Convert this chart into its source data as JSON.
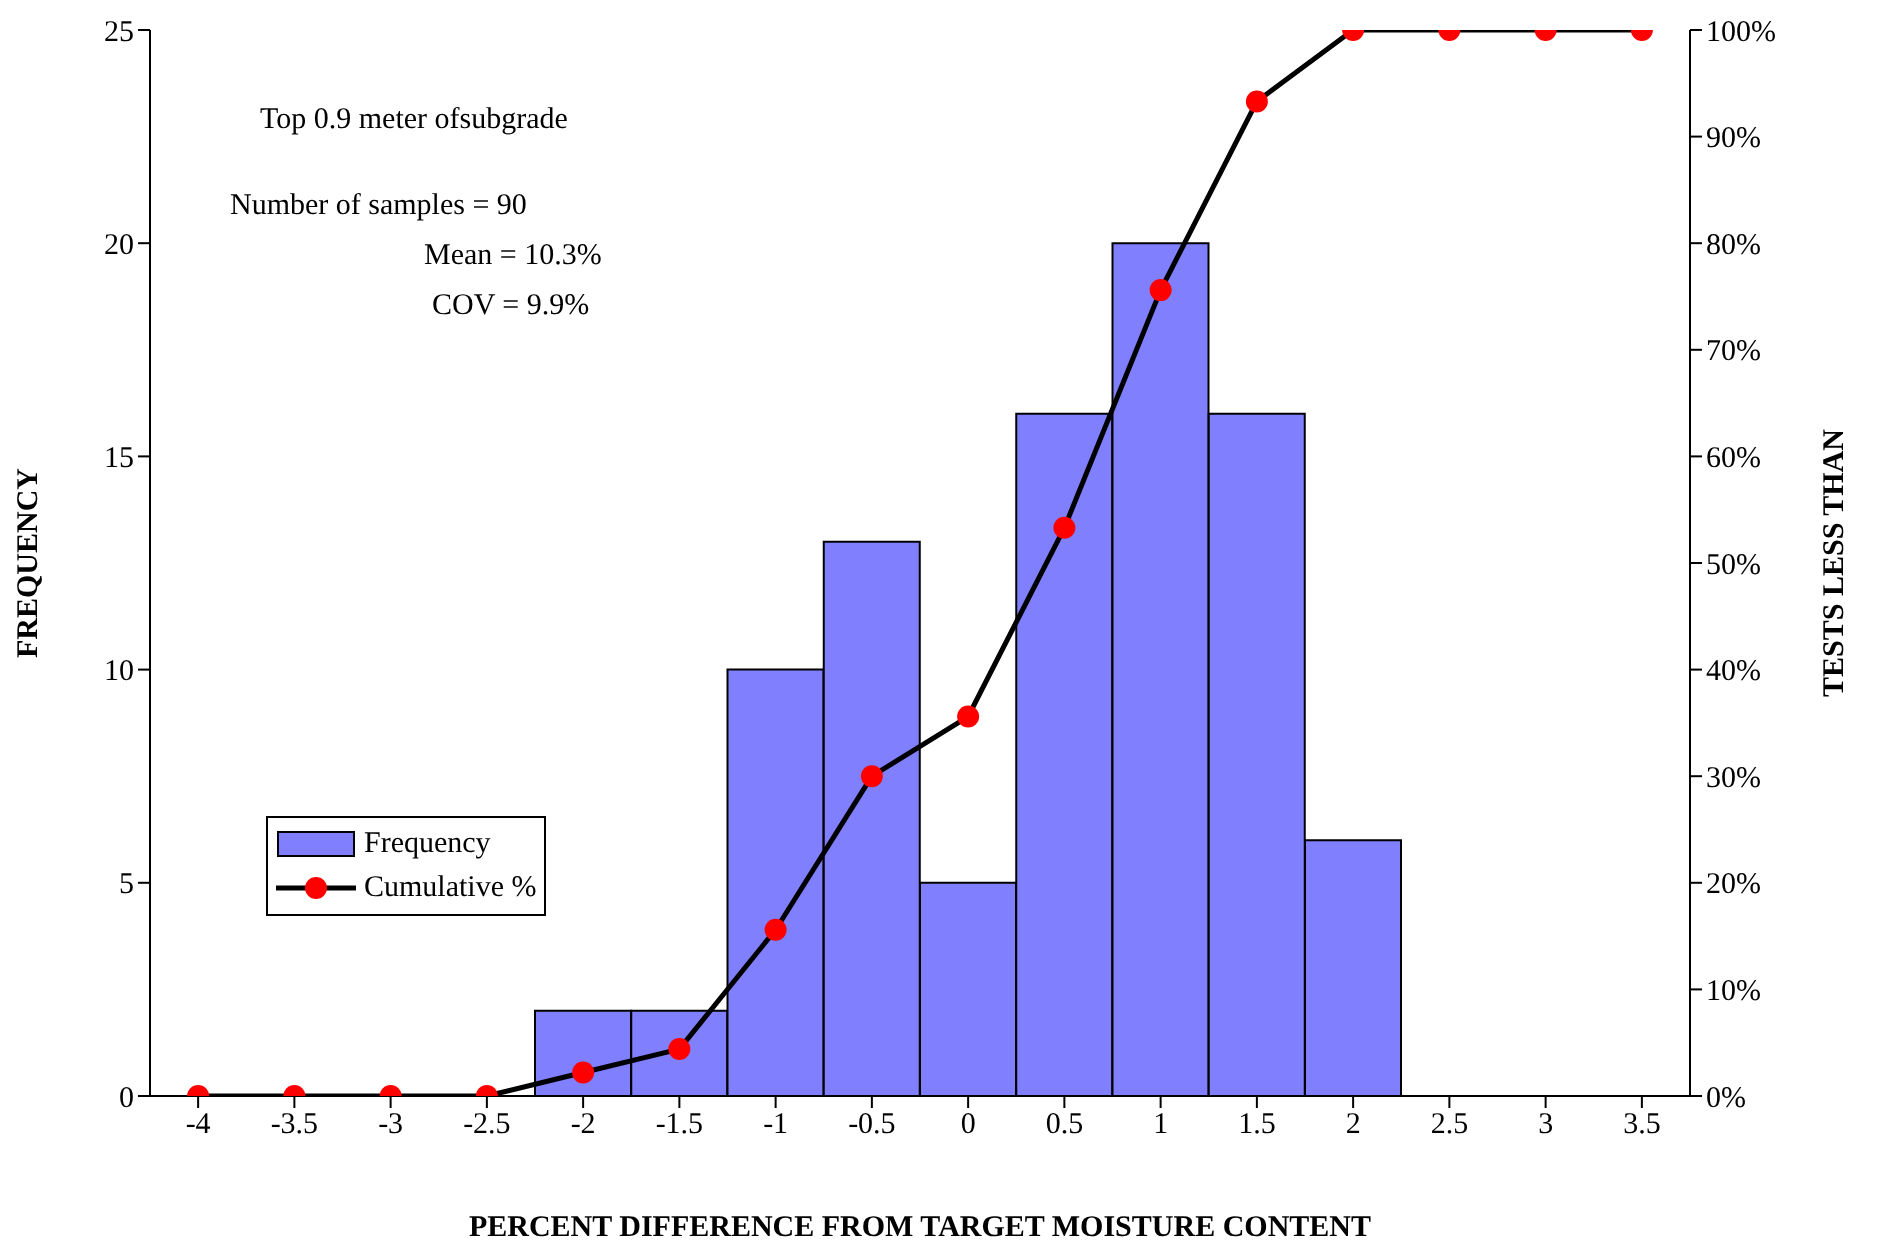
{
  "chart_data": {
    "type": "bar",
    "xlabel": "PERCENT DIFFERENCE FROM TARGET MOISTURE CONTENT",
    "ylabel": "FREQUENCY",
    "y2label": "TESTS LESS THAN",
    "categories": [
      "-4",
      "-3.5",
      "-3",
      "-2.5",
      "-2",
      "-1.5",
      "-1",
      "-0.5",
      "0",
      "0.5",
      "1",
      "1.5",
      "2",
      "2.5",
      "3",
      "3.5"
    ],
    "series": [
      {
        "name": "Frequency",
        "color": "#8080ff",
        "values": [
          0,
          0,
          0,
          0,
          2,
          2,
          10,
          13,
          5,
          16,
          20,
          16,
          6,
          0,
          0,
          0
        ]
      },
      {
        "name": "Cumulative %",
        "type": "line",
        "axis": "y2",
        "color": "#ff0000",
        "values": [
          0,
          0,
          0,
          0,
          2.2,
          4.4,
          15.6,
          30,
          35.6,
          53.3,
          75.6,
          93.3,
          100,
          100,
          100,
          100
        ]
      }
    ],
    "ylim": [
      0,
      25
    ],
    "yticks": [
      0,
      5,
      10,
      15,
      20,
      25
    ],
    "y2lim": [
      0,
      100
    ],
    "y2ticks": [
      {
        "value": 0,
        "label": "0%"
      },
      {
        "value": 10,
        "label": "10%"
      },
      {
        "value": 20,
        "label": "20%"
      },
      {
        "value": 30,
        "label": "30%"
      },
      {
        "value": 40,
        "label": "40%"
      },
      {
        "value": 50,
        "label": "50%"
      },
      {
        "value": 60,
        "label": "60%"
      },
      {
        "value": 70,
        "label": "70%"
      },
      {
        "value": 80,
        "label": "80%"
      },
      {
        "value": 90,
        "label": "90%"
      },
      {
        "value": 100,
        "label": "100%"
      }
    ],
    "marker": "circle",
    "grid": false,
    "legend": "left",
    "annotations": [
      "Top 0.9 meter ofsubgrade",
      "Number of samples = 90",
      "Mean = 10.3%",
      "COV = 9.9%"
    ]
  }
}
